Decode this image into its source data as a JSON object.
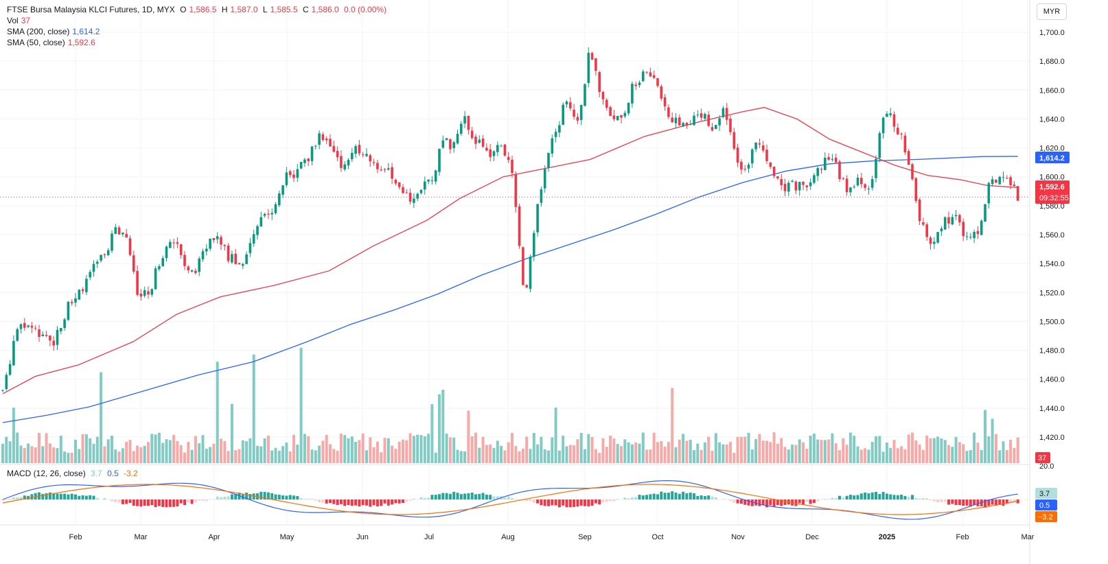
{
  "header": {
    "symbol": "FTSE Bursa Malaysia KLCI Futures, 1D, MYX",
    "o_label": "O",
    "o": "1,586.5",
    "h_label": "H",
    "h": "1,587.0",
    "l_label": "L",
    "l": "1,585.5",
    "c_label": "C",
    "c": "1,586.0",
    "change": "0.0 (0.00%)",
    "vol_label": "Vol",
    "vol": "37",
    "sma200_label": "SMA (200, close)",
    "sma200": "1,614.2",
    "sma50_label": "SMA (50, close)",
    "sma50": "1,592.6",
    "macd_label": "MACD (12, 26, close)",
    "macd_hist": "3.7",
    "macd_line": "0.5",
    "macd_signal": "-3.2"
  },
  "currency": "MYR",
  "badges": {
    "sma200": "1,614.2",
    "sma50": "1,592.6",
    "countdown": "09:32:55",
    "volume": "37",
    "macd_hist": "3.7",
    "macd_line": "0.5",
    "macd_signal": "−3.2",
    "macd_axis": "20.0"
  },
  "colors": {
    "up": "#089981",
    "down": "#f23645",
    "sma200": "#2962ff",
    "sma50": "#f23645",
    "macd": "#2962ff",
    "signal": "#ff6d00",
    "grid": "#f0f3fa"
  },
  "chart_data": {
    "type": "candlestick",
    "y_ticks": [
      "1,700.0",
      "1,680.0",
      "1,660.0",
      "1,640.0",
      "1,620.0",
      "1,600.0",
      "1,580.0",
      "1,560.0",
      "1,540.0",
      "1,520.0",
      "1,500.0",
      "1,480.0",
      "1,460.0",
      "1,440.0",
      "1,420.0"
    ],
    "ylim": [
      1412,
      1716
    ],
    "x_labels": [
      "Feb",
      "Mar",
      "Apr",
      "May",
      "Jun",
      "Jul",
      "Aug",
      "Sep",
      "Oct",
      "Nov",
      "Dec",
      "2025",
      "Feb",
      "Mar"
    ],
    "last_price": 1586.0,
    "series": [
      {
        "name": "SMA (200, close)",
        "points": [
          [
            0,
            1430
          ],
          [
            40,
            1435
          ],
          [
            80,
            1441
          ],
          [
            130,
            1452
          ],
          [
            180,
            1463
          ],
          [
            230,
            1472
          ],
          [
            280,
            1486
          ],
          [
            320,
            1498
          ],
          [
            360,
            1508
          ],
          [
            400,
            1519
          ],
          [
            440,
            1532
          ],
          [
            480,
            1543
          ],
          [
            520,
            1553
          ],
          [
            560,
            1563
          ],
          [
            600,
            1574
          ],
          [
            640,
            1586
          ],
          [
            680,
            1596
          ],
          [
            720,
            1604
          ],
          [
            760,
            1609
          ],
          [
            800,
            1611
          ],
          [
            841,
            1612
          ],
          [
            870,
            1613
          ],
          [
            900,
            1614
          ],
          [
            933,
            1614.2
          ]
        ]
      },
      {
        "name": "SMA (50, close)",
        "points": [
          [
            0,
            1450
          ],
          [
            30,
            1462
          ],
          [
            70,
            1470
          ],
          [
            120,
            1486
          ],
          [
            160,
            1505
          ],
          [
            200,
            1517
          ],
          [
            250,
            1525
          ],
          [
            300,
            1535
          ],
          [
            340,
            1552
          ],
          [
            390,
            1570
          ],
          [
            420,
            1585
          ],
          [
            460,
            1600
          ],
          [
            500,
            1606
          ],
          [
            540,
            1612
          ],
          [
            590,
            1628
          ],
          [
            640,
            1638
          ],
          [
            680,
            1645
          ],
          [
            700,
            1648
          ],
          [
            730,
            1640
          ],
          [
            760,
            1626
          ],
          [
            790,
            1617
          ],
          [
            820,
            1608
          ],
          [
            850,
            1601
          ],
          [
            880,
            1598
          ],
          [
            905,
            1594
          ],
          [
            933,
            1592.6
          ]
        ]
      }
    ]
  }
}
